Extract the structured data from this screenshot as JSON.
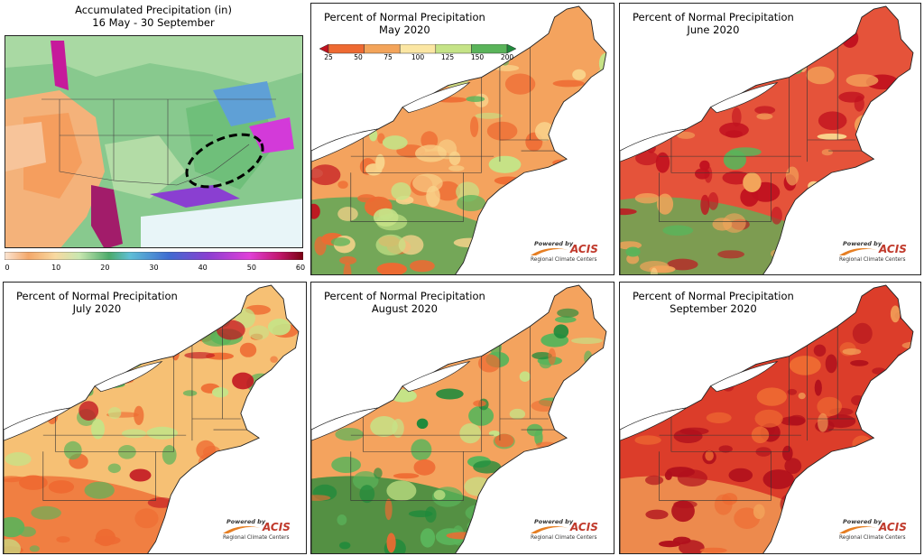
{
  "overview": {
    "title_line1": "Accumulated Precipitation (in)",
    "title_line2": "16 May - 30 September",
    "colorbar_ticks": [
      "0",
      "10",
      "20",
      "30",
      "40",
      "50",
      "60"
    ]
  },
  "legend": {
    "ticks": [
      "25",
      "50",
      "75",
      "100",
      "125",
      "150",
      "200"
    ],
    "colors": [
      "#c1121f",
      "#ee6a32",
      "#f3a45a",
      "#fbe6a3",
      "#c5e387",
      "#5ab45a",
      "#1f8a3b"
    ]
  },
  "panels": [
    {
      "id": "may",
      "title_line1": "Percent of Normal Precipitation",
      "title_line2": "May 2020",
      "palette": "mixed_dry"
    },
    {
      "id": "june",
      "title_line1": "Percent of Normal Precipitation",
      "title_line2": "June 2020",
      "palette": "very_dry"
    },
    {
      "id": "july",
      "title_line1": "Percent of Normal Precipitation",
      "title_line2": "July 2020",
      "palette": "mixed"
    },
    {
      "id": "august",
      "title_line1": "Percent of Normal Precipitation",
      "title_line2": "August 2020",
      "palette": "wet_south"
    },
    {
      "id": "september",
      "title_line1": "Percent of Normal Precipitation",
      "title_line2": "September 2020",
      "palette": "extreme_dry"
    }
  ],
  "acis": {
    "powered_by": "Powered by",
    "name": "ACIS",
    "subtitle": "Regional Climate Centers"
  }
}
